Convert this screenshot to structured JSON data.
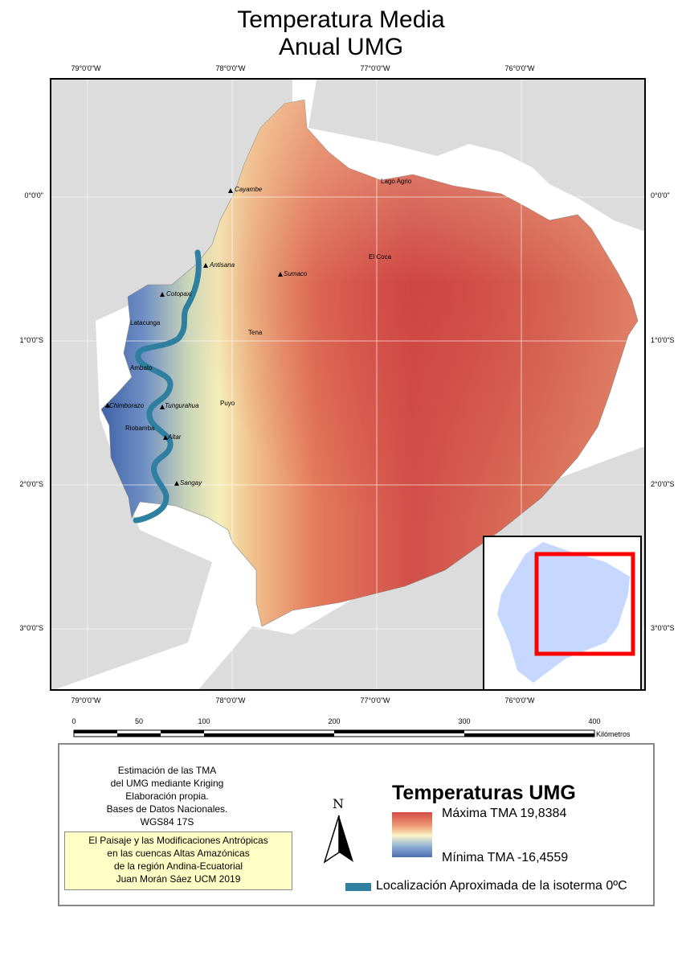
{
  "title": {
    "line1": "Temperatura Media",
    "line2": "Anual UMG"
  },
  "graticule": {
    "longitudes": [
      "79°0'0\"W",
      "78°0'0\"W",
      "77°0'0\"W",
      "76°0'0\"W"
    ],
    "latitudes": [
      "0°0'0\"",
      "1°0'0\"S",
      "2°0'0\"S",
      "3°0'0\"S"
    ]
  },
  "places": {
    "cayambe": "Cayambe",
    "lago_agrio": "Lago Agrio",
    "antisana": "Antisana",
    "sumaco": "Sumaco",
    "el_coca": "El Coca",
    "cotopaxi": "Cotopaxi",
    "latacunga": "Latacunga",
    "tena": "Tena",
    "ambato": "Ambato",
    "chimborazo": "Chimborazo",
    "tungurahua": "Tungurahua",
    "puyo": "Puyo",
    "riobamba": "Riobamba",
    "altar": "Altar",
    "sangay": "Sangay"
  },
  "scale": {
    "ticks": [
      "0",
      "50",
      "100",
      "200",
      "300",
      "400"
    ],
    "unit": "Kilómetros"
  },
  "metadata": {
    "lines": [
      "Estimación de las TMA",
      "del UMG mediante Kriging",
      "Elaboración propia.",
      "Bases de Datos Nacionales.",
      "WGS84 17S"
    ]
  },
  "credit": {
    "lines": [
      "El Paisaje y las Modificaciones Antrópicas",
      "en las cuencas Altas Amazónicas",
      "de la región Andina-Ecuatorial",
      "Juan Morán Sáez UCM 2019"
    ]
  },
  "north": "N",
  "legend": {
    "title": "Temperaturas UMG",
    "max_label": "Máxima TMA 19,8384",
    "min_label": "Mínima TMA -16,4559",
    "isotherm_label": "Localización Aproximada de la isoterma 0ºC"
  },
  "colors": {
    "warm": "#d24b45",
    "cold": "#4e6fb0",
    "isotherm": "#2e7fa0",
    "inset_highlight": "#ff0000"
  }
}
